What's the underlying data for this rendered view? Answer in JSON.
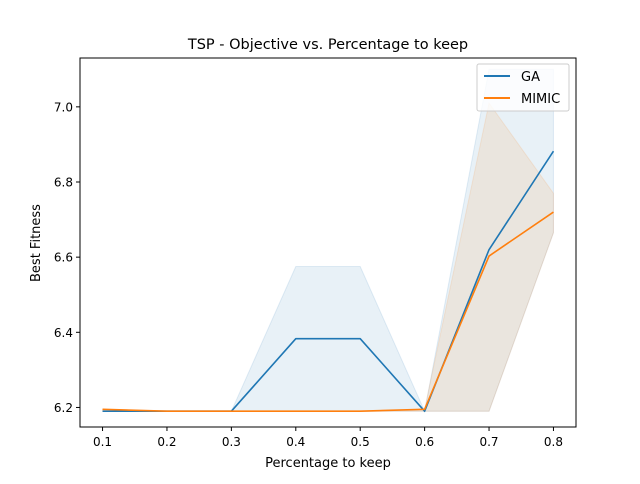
{
  "chart_data": {
    "type": "line",
    "title": "TSP - Objective vs. Percentage to keep",
    "xlabel": "Percentage to keep",
    "ylabel": "Best Fitness",
    "x": [
      0.1,
      0.2,
      0.3,
      0.4,
      0.5,
      0.6,
      0.7,
      0.8
    ],
    "xticks": [
      "0.1",
      "0.2",
      "0.3",
      "0.4",
      "0.5",
      "0.6",
      "0.7",
      "0.8"
    ],
    "yticks": [
      "6.2",
      "6.4",
      "6.6",
      "6.8",
      "7.0"
    ],
    "xlim": [
      0.065,
      0.835
    ],
    "ylim": [
      6.148,
      7.13
    ],
    "grid": false,
    "legend_position": "top-right",
    "series": [
      {
        "name": "GA",
        "color": "#1f77b4",
        "values": [
          6.19,
          6.19,
          6.19,
          6.383,
          6.383,
          6.19,
          6.62,
          6.882
        ],
        "band_low": [
          6.19,
          6.19,
          6.19,
          6.19,
          6.19,
          6.19,
          6.19,
          6.665
        ],
        "band_high": [
          6.19,
          6.19,
          6.19,
          6.575,
          6.575,
          6.19,
          7.1,
          7.1
        ]
      },
      {
        "name": "MIMIC",
        "color": "#ff7f0e",
        "values": [
          6.195,
          6.19,
          6.19,
          6.19,
          6.19,
          6.195,
          6.603,
          6.72
        ],
        "band_low": [
          6.19,
          6.19,
          6.19,
          6.19,
          6.19,
          6.19,
          6.19,
          6.665
        ],
        "band_high": [
          6.195,
          6.19,
          6.19,
          6.19,
          6.19,
          6.195,
          7.01,
          6.77
        ]
      }
    ]
  }
}
